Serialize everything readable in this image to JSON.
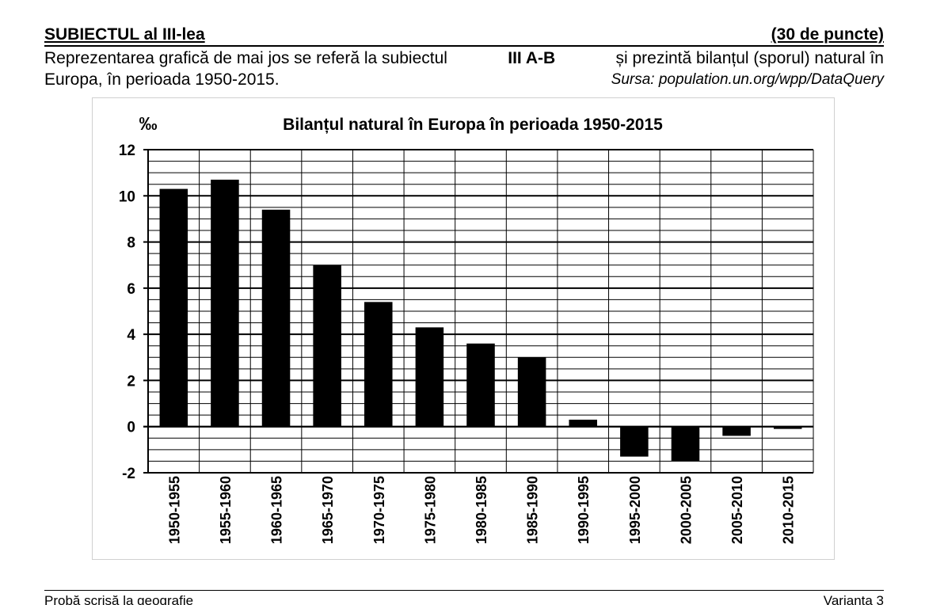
{
  "header": {
    "subject": "SUBIECTUL al III-lea",
    "points": "(30 de puncte)"
  },
  "intro": {
    "part1": "Reprezentarea grafică de mai jos se referă la subiectul ",
    "bold": "III A-B",
    "part2": " și prezintă bilanțul (sporul) natural în",
    "line2": "Europa, în perioada 1950-2015.",
    "source": "Sursa: population.un.org/wpp/DataQuery"
  },
  "chart_data": {
    "type": "bar",
    "title": "Bilanțul natural în Europa în perioada 1950-2015",
    "ylabel": "‰",
    "xlabel": "",
    "categories": [
      "1950-1955",
      "1955-1960",
      "1960-1965",
      "1965-1970",
      "1970-1975",
      "1975-1980",
      "1980-1985",
      "1985-1990",
      "1990-1995",
      "1995-2000",
      "2000-2005",
      "2005-2010",
      "2010-2015"
    ],
    "values": [
      10.3,
      10.7,
      9.4,
      7.0,
      5.4,
      4.3,
      3.6,
      3.0,
      0.3,
      -1.3,
      -1.5,
      -0.4,
      -0.1
    ],
    "ylim": [
      -2,
      12
    ],
    "yticks": [
      "-2",
      "0",
      "2",
      "4",
      "6",
      "8",
      "10",
      "12"
    ],
    "grid": true,
    "bar_color": "#000000"
  },
  "footer": {
    "left": "Probă scrisă la geografie",
    "right": "Varianta 3"
  }
}
